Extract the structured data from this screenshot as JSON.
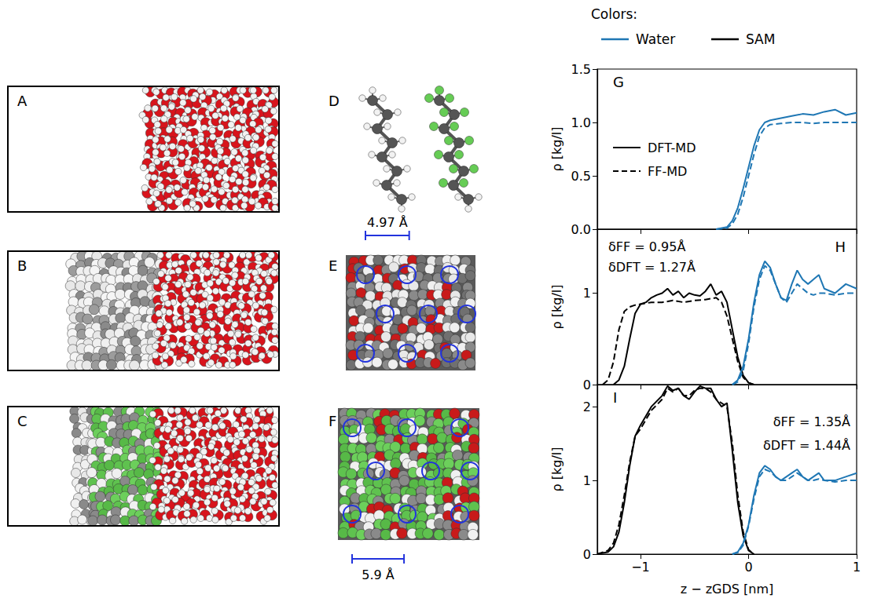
{
  "chart_data": [
    {
      "type": "line",
      "title": "G",
      "y_label": "ρ [kg/l]",
      "xlim": [
        -1.4,
        1.0
      ],
      "xticks": [
        {
          "value": -1,
          "label": "−1"
        },
        0,
        1
      ],
      "ylim": [
        0,
        1.5
      ],
      "yticks": [
        {
          "value": 0,
          "label": "0.0"
        },
        {
          "value": 0.5,
          "label": "0.5"
        },
        {
          "value": 1,
          "label": "1.0"
        },
        {
          "value": 1.5,
          "label": "1.5"
        }
      ],
      "tick_labels": "y",
      "grid": false,
      "legend": "center left",
      "legend_entries": [
        {
          "name": "DFT-MD",
          "line_style": "solid"
        },
        {
          "name": "FF-MD",
          "line_style": "dashed"
        }
      ],
      "series": [
        {
          "name": "Water",
          "color": "#1f77b4",
          "line_style": "solid",
          "x": [
            -0.3,
            -0.2,
            -0.15,
            -0.1,
            -0.05,
            0,
            0.05,
            0.1,
            0.15,
            0.2,
            0.3,
            0.4,
            0.5,
            0.6,
            0.7,
            0.8,
            0.9,
            1.0
          ],
          "values": [
            0,
            0.02,
            0.08,
            0.2,
            0.38,
            0.58,
            0.78,
            0.93,
            1.0,
            1.02,
            1.04,
            1.06,
            1.08,
            1.07,
            1.1,
            1.12,
            1.07,
            1.09
          ]
        },
        {
          "name": "Water",
          "color": "#1f77b4",
          "line_style": "dashed",
          "x": [
            -0.3,
            -0.2,
            -0.15,
            -0.1,
            -0.05,
            0,
            0.05,
            0.1,
            0.15,
            0.2,
            0.3,
            0.4,
            0.5,
            0.6,
            0.7,
            0.8,
            0.9,
            1.0
          ],
          "values": [
            0,
            0.01,
            0.05,
            0.14,
            0.3,
            0.5,
            0.7,
            0.87,
            0.95,
            0.98,
            0.99,
            1.0,
            1.0,
            0.99,
            1.0,
            1.0,
            1.0,
            1.0
          ]
        }
      ]
    },
    {
      "type": "line",
      "title": "H",
      "y_label": "ρ [kg/l]",
      "xlim": [
        -1.4,
        1.0
      ],
      "xticks": [
        {
          "value": -1,
          "label": "−1"
        },
        0,
        1
      ],
      "ylim": [
        0,
        1.7
      ],
      "yticks": [
        0,
        1
      ],
      "tick_labels": "y",
      "grid": false,
      "annotations": [
        "δFF = 0.95Å",
        "δDFT = 1.27Å"
      ],
      "series": [
        {
          "name": "SAM",
          "color": "#000000",
          "line_style": "solid",
          "x": [
            -1.25,
            -1.2,
            -1.15,
            -1.1,
            -1.05,
            -1.0,
            -0.95,
            -0.9,
            -0.85,
            -0.8,
            -0.75,
            -0.7,
            -0.65,
            -0.6,
            -0.55,
            -0.5,
            -0.45,
            -0.4,
            -0.35,
            -0.3,
            -0.25,
            -0.2,
            -0.15,
            -0.1,
            -0.05,
            0,
            0.05
          ],
          "values": [
            0,
            0.05,
            0.2,
            0.5,
            0.78,
            0.88,
            0.9,
            0.95,
            0.98,
            1.0,
            1.05,
            0.98,
            1.02,
            0.95,
            1.0,
            0.98,
            0.97,
            1.02,
            1.1,
            0.98,
            1.02,
            0.9,
            0.6,
            0.3,
            0.1,
            0.02,
            0
          ]
        },
        {
          "name": "SAM",
          "color": "#000000",
          "line_style": "dashed",
          "x": [
            -1.35,
            -1.3,
            -1.25,
            -1.2,
            -1.15,
            -1.1,
            -1.05,
            -1.0,
            -0.9,
            -0.8,
            -0.7,
            -0.6,
            -0.5,
            -0.4,
            -0.3,
            -0.25,
            -0.2,
            -0.15,
            -0.1,
            -0.05,
            0,
            0.05
          ],
          "values": [
            0,
            0.05,
            0.25,
            0.6,
            0.8,
            0.85,
            0.87,
            0.88,
            0.9,
            0.9,
            0.92,
            0.9,
            0.92,
            0.93,
            0.95,
            0.9,
            0.75,
            0.5,
            0.25,
            0.08,
            0.02,
            0
          ]
        },
        {
          "name": "Water",
          "color": "#1f77b4",
          "line_style": "solid",
          "x": [
            -0.15,
            -0.1,
            -0.05,
            0,
            0.05,
            0.1,
            0.15,
            0.2,
            0.25,
            0.3,
            0.35,
            0.4,
            0.45,
            0.5,
            0.55,
            0.6,
            0.65,
            0.7,
            0.8,
            0.9,
            1.0
          ],
          "values": [
            0,
            0.05,
            0.2,
            0.5,
            0.9,
            1.2,
            1.35,
            1.28,
            1.1,
            0.95,
            0.92,
            1.1,
            1.25,
            1.15,
            1.1,
            1.15,
            1.2,
            1.05,
            1.0,
            1.1,
            1.05
          ]
        },
        {
          "name": "Water",
          "color": "#1f77b4",
          "line_style": "dashed",
          "x": [
            -0.15,
            -0.1,
            -0.05,
            0,
            0.05,
            0.1,
            0.15,
            0.2,
            0.25,
            0.3,
            0.35,
            0.4,
            0.45,
            0.5,
            0.55,
            0.6,
            0.65,
            0.7,
            0.8,
            0.9,
            1.0
          ],
          "values": [
            0,
            0.03,
            0.15,
            0.45,
            0.85,
            1.15,
            1.3,
            1.25,
            1.1,
            0.95,
            0.9,
            1.0,
            1.1,
            1.05,
            1.0,
            0.98,
            1.0,
            1.0,
            0.98,
            1.0,
            1.0
          ]
        }
      ]
    },
    {
      "type": "line",
      "title": "I",
      "y_label": "ρ [kg/l]",
      "x_label": "z − zGDS [nm]",
      "xlim": [
        -1.4,
        1.0
      ],
      "xticks": [
        {
          "value": -1,
          "label": "−1"
        },
        0,
        1
      ],
      "ylim": [
        0,
        2.3
      ],
      "yticks": [
        0,
        1,
        2
      ],
      "tick_labels": true,
      "grid": false,
      "annotations": [
        "δFF = 1.35Å",
        "δDFT = 1.44Å"
      ],
      "series": [
        {
          "name": "SAM",
          "color": "#000000",
          "line_style": "solid",
          "x": [
            -1.4,
            -1.3,
            -1.25,
            -1.2,
            -1.15,
            -1.1,
            -1.05,
            -1.0,
            -0.9,
            -0.8,
            -0.75,
            -0.7,
            -0.65,
            -0.6,
            -0.55,
            -0.5,
            -0.45,
            -0.4,
            -0.35,
            -0.3,
            -0.25,
            -0.2,
            -0.15,
            -0.1,
            -0.05,
            0,
            0.05
          ],
          "values": [
            0,
            0.03,
            0.1,
            0.3,
            0.7,
            1.2,
            1.6,
            1.75,
            2.0,
            2.15,
            2.28,
            2.22,
            2.25,
            2.15,
            2.1,
            2.2,
            2.28,
            2.25,
            2.25,
            2.1,
            2.0,
            2.05,
            1.4,
            0.7,
            0.25,
            0.05,
            0
          ]
        },
        {
          "name": "SAM",
          "color": "#000000",
          "line_style": "dashed",
          "x": [
            -1.4,
            -1.3,
            -1.25,
            -1.2,
            -1.15,
            -1.1,
            -1.05,
            -1.0,
            -0.9,
            -0.8,
            -0.75,
            -0.7,
            -0.65,
            -0.6,
            -0.55,
            -0.5,
            -0.45,
            -0.4,
            -0.35,
            -0.3,
            -0.25,
            -0.2,
            -0.15,
            -0.1,
            -0.05,
            0,
            0.05
          ],
          "values": [
            0,
            0.05,
            0.15,
            0.4,
            0.8,
            1.25,
            1.6,
            1.7,
            1.95,
            2.1,
            2.25,
            2.2,
            2.25,
            2.15,
            2.15,
            2.22,
            2.25,
            2.25,
            2.2,
            2.1,
            2.05,
            2.0,
            1.5,
            0.8,
            0.3,
            0.06,
            0
          ]
        },
        {
          "name": "Water",
          "color": "#1f77b4",
          "line_style": "solid",
          "x": [
            -0.15,
            -0.1,
            -0.05,
            0,
            0.05,
            0.1,
            0.15,
            0.2,
            0.25,
            0.3,
            0.35,
            0.4,
            0.45,
            0.5,
            0.55,
            0.6,
            0.65,
            0.7,
            0.8,
            0.9,
            1.0
          ],
          "values": [
            0,
            0.03,
            0.15,
            0.4,
            0.8,
            1.1,
            1.2,
            1.15,
            1.05,
            1.0,
            1.05,
            1.1,
            1.15,
            1.05,
            1.0,
            1.05,
            1.1,
            1.0,
            1.0,
            1.05,
            1.1
          ]
        },
        {
          "name": "Water",
          "color": "#1f77b4",
          "line_style": "dashed",
          "x": [
            -0.15,
            -0.1,
            -0.05,
            0,
            0.05,
            0.1,
            0.15,
            0.2,
            0.25,
            0.3,
            0.35,
            0.4,
            0.45,
            0.5,
            0.55,
            0.6,
            0.65,
            0.7,
            0.8,
            0.9,
            1.0
          ],
          "values": [
            0,
            0.02,
            0.12,
            0.38,
            0.75,
            1.05,
            1.15,
            1.12,
            1.05,
            1.0,
            1.0,
            1.05,
            1.1,
            1.05,
            1.0,
            1.0,
            1.02,
            1.0,
            0.98,
            1.0,
            1.0
          ]
        }
      ]
    }
  ],
  "figure": {
    "legend_title": "Colors:",
    "legend_colors": [
      {
        "name": "Water",
        "color": "#1f77b4"
      },
      {
        "name": "SAM",
        "color": "#000000"
      }
    ],
    "image_panels": [
      "A",
      "B",
      "C",
      "D",
      "E",
      "F"
    ],
    "scale_bars": [
      {
        "label": "4.97 Å",
        "length": 4.97
      },
      {
        "label": "5.9 Å",
        "length": 5.9
      }
    ]
  }
}
